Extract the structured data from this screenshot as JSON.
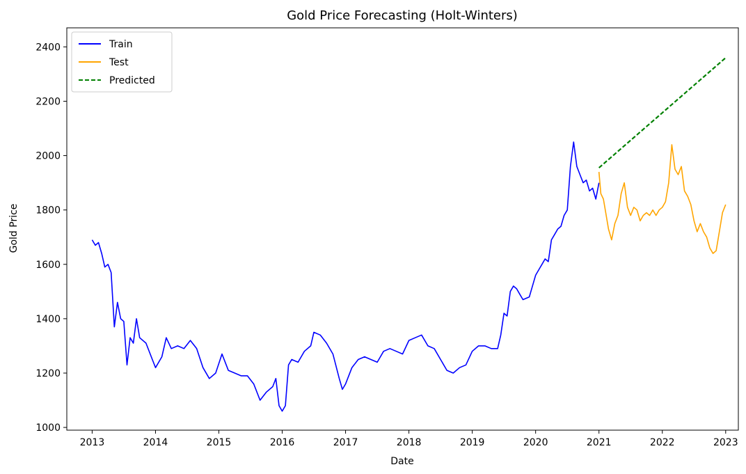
{
  "chart_data": {
    "type": "line",
    "title": "Gold Price Forecasting (Holt-Winters)",
    "xlabel": "Date",
    "ylabel": "Gold Price",
    "xlim": [
      2012.6,
      2023.2
    ],
    "ylim": [
      990,
      2470
    ],
    "x_ticks": [
      2013,
      2014,
      2015,
      2016,
      2017,
      2018,
      2019,
      2020,
      2021,
      2022,
      2023
    ],
    "x_tick_labels": [
      "2013",
      "2014",
      "2015",
      "2016",
      "2017",
      "2018",
      "2019",
      "2020",
      "2021",
      "2022",
      "2023"
    ],
    "y_ticks": [
      1000,
      1200,
      1400,
      1600,
      1800,
      2000,
      2200,
      2400
    ],
    "y_tick_labels": [
      "1000",
      "1200",
      "1400",
      "1600",
      "1800",
      "2000",
      "2200",
      "2400"
    ],
    "grid": false,
    "legend": {
      "position": "upper-left"
    },
    "series": [
      {
        "name": "Train",
        "color": "#0000ff",
        "style": "solid",
        "x": [
          2013.0,
          2013.05,
          2013.1,
          2013.15,
          2013.2,
          2013.25,
          2013.3,
          2013.35,
          2013.4,
          2013.45,
          2013.5,
          2013.55,
          2013.6,
          2013.65,
          2013.7,
          2013.75,
          2013.85,
          2013.95,
          2014.0,
          2014.1,
          2014.17,
          2014.25,
          2014.35,
          2014.45,
          2014.55,
          2014.65,
          2014.75,
          2014.85,
          2014.95,
          2015.05,
          2015.15,
          2015.25,
          2015.35,
          2015.45,
          2015.55,
          2015.65,
          2015.75,
          2015.85,
          2015.9,
          2015.95,
          2016.0,
          2016.05,
          2016.1,
          2016.15,
          2016.25,
          2016.35,
          2016.45,
          2016.5,
          2016.6,
          2016.7,
          2016.8,
          2016.9,
          2016.95,
          2017.0,
          2017.1,
          2017.2,
          2017.3,
          2017.4,
          2017.5,
          2017.6,
          2017.7,
          2017.8,
          2017.9,
          2018.0,
          2018.1,
          2018.2,
          2018.3,
          2018.4,
          2018.5,
          2018.6,
          2018.7,
          2018.8,
          2018.9,
          2019.0,
          2019.1,
          2019.2,
          2019.3,
          2019.4,
          2019.45,
          2019.5,
          2019.55,
          2019.6,
          2019.65,
          2019.7,
          2019.75,
          2019.8,
          2019.9,
          2020.0,
          2020.05,
          2020.1,
          2020.15,
          2020.2,
          2020.25,
          2020.3,
          2020.35,
          2020.4,
          2020.45,
          2020.5,
          2020.55,
          2020.6,
          2020.65,
          2020.7,
          2020.75,
          2020.8,
          2020.85,
          2020.9,
          2020.95,
          2021.0
        ],
        "values": [
          1690,
          1670,
          1680,
          1640,
          1590,
          1600,
          1570,
          1370,
          1460,
          1400,
          1390,
          1230,
          1330,
          1310,
          1400,
          1330,
          1310,
          1250,
          1220,
          1260,
          1330,
          1290,
          1300,
          1290,
          1320,
          1290,
          1220,
          1180,
          1200,
          1270,
          1210,
          1200,
          1190,
          1190,
          1160,
          1100,
          1130,
          1150,
          1180,
          1080,
          1060,
          1080,
          1230,
          1250,
          1240,
          1280,
          1300,
          1350,
          1340,
          1310,
          1270,
          1180,
          1140,
          1160,
          1220,
          1250,
          1260,
          1250,
          1240,
          1280,
          1290,
          1280,
          1270,
          1320,
          1330,
          1340,
          1300,
          1290,
          1250,
          1210,
          1200,
          1220,
          1230,
          1280,
          1300,
          1300,
          1290,
          1290,
          1340,
          1420,
          1410,
          1500,
          1520,
          1510,
          1490,
          1470,
          1480,
          1560,
          1580,
          1600,
          1620,
          1610,
          1690,
          1710,
          1730,
          1740,
          1780,
          1800,
          1960,
          2050,
          1960,
          1930,
          1900,
          1910,
          1870,
          1880,
          1840,
          1900
        ]
      },
      {
        "name": "Test",
        "color": "#ffa500",
        "style": "solid",
        "x": [
          2021.0,
          2021.03,
          2021.07,
          2021.1,
          2021.15,
          2021.2,
          2021.25,
          2021.3,
          2021.35,
          2021.4,
          2021.45,
          2021.5,
          2021.55,
          2021.6,
          2021.65,
          2021.7,
          2021.75,
          2021.8,
          2021.85,
          2021.9,
          2021.95,
          2022.0,
          2022.05,
          2022.1,
          2022.15,
          2022.2,
          2022.25,
          2022.3,
          2022.35,
          2022.4,
          2022.45,
          2022.5,
          2022.55,
          2022.6,
          2022.65,
          2022.7,
          2022.75,
          2022.8,
          2022.85,
          2022.9,
          2022.95,
          2023.0
        ],
        "values": [
          1940,
          1860,
          1840,
          1800,
          1730,
          1690,
          1750,
          1780,
          1860,
          1900,
          1810,
          1780,
          1810,
          1800,
          1760,
          1780,
          1790,
          1780,
          1800,
          1780,
          1800,
          1810,
          1830,
          1900,
          2040,
          1950,
          1930,
          1960,
          1870,
          1850,
          1820,
          1760,
          1720,
          1750,
          1720,
          1700,
          1660,
          1640,
          1650,
          1720,
          1790,
          1820
        ]
      },
      {
        "name": "Predicted",
        "color": "#008000",
        "style": "dashed",
        "x": [
          2021.0,
          2023.0
        ],
        "values": [
          1955,
          2360
        ]
      }
    ]
  }
}
